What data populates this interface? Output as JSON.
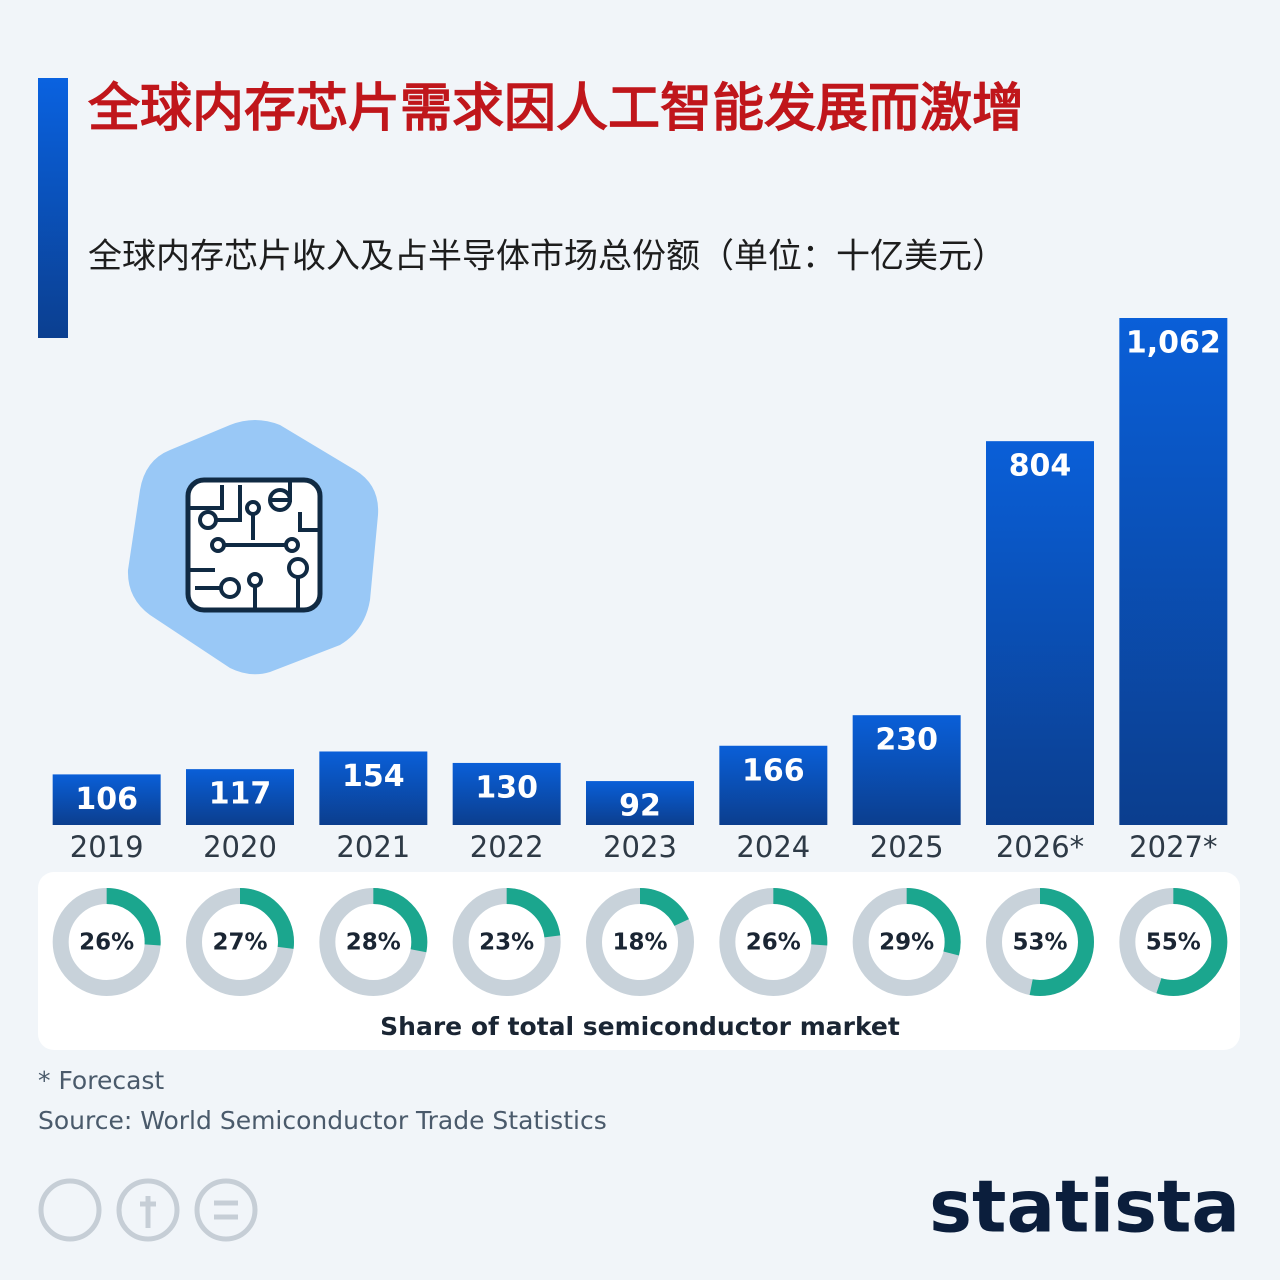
{
  "chart_data": {
    "type": "bar",
    "title": "全球内存芯片需求因人工智能发展而激增",
    "subtitle": "全球内存芯片收入及占半导体市场总份额（单位：十亿美元）",
    "categories": [
      "2019",
      "2020",
      "2021",
      "2022",
      "2023",
      "2024",
      "2025",
      "2026*",
      "2027*"
    ],
    "values": [
      106,
      117,
      154,
      130,
      92,
      166,
      230,
      804,
      1062
    ],
    "value_labels": [
      "106",
      "117",
      "154",
      "130",
      "92",
      "166",
      "230",
      "804",
      "1,062"
    ],
    "color": "#0a5ad0",
    "share": {
      "title": "Share of total semiconductor market",
      "values": [
        26,
        27,
        28,
        23,
        18,
        26,
        29,
        53,
        55
      ],
      "value_labels": [
        "26%",
        "27%",
        "28%",
        "23%",
        "18%",
        "26%",
        "29%",
        "53%",
        "55%"
      ],
      "color": "#1ba68e",
      "track_color": "#c8d2da"
    },
    "footnote": "* Forecast",
    "source": "Source: World Semiconductor Trade Statistics",
    "brand": "statista"
  }
}
